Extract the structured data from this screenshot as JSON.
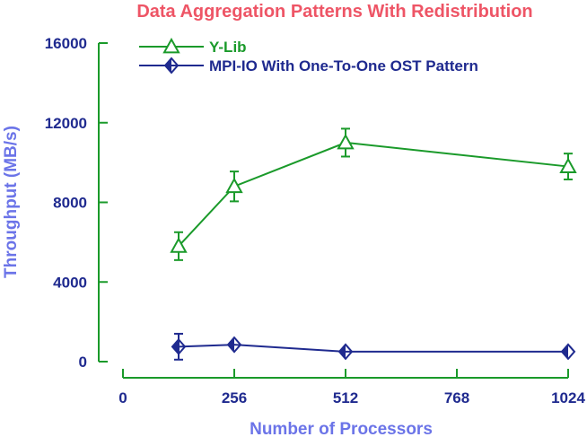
{
  "chart_data": {
    "type": "line",
    "title": "Data Aggregation Patterns With Redistribution",
    "xlabel": "Number of Processors",
    "ylabel": "Throughput (MB/s)",
    "xlim": [
      0,
      1024
    ],
    "ylim": [
      0,
      16000
    ],
    "xticks": [
      0,
      256,
      512,
      768,
      1024
    ],
    "xtick_labels": [
      "0",
      "256",
      "512",
      "768",
      "1024"
    ],
    "yticks": [
      0,
      4000,
      8000,
      12000,
      16000
    ],
    "ytick_labels": [
      "0",
      "4000",
      "8000",
      "12000",
      "16000"
    ],
    "grid": false,
    "legend_position": "top-left",
    "series": [
      {
        "name": "Y-Lib",
        "color": "#1a9a2a",
        "marker": "triangle",
        "x": [
          128,
          256,
          512,
          1024
        ],
        "y": [
          5800,
          8800,
          11000,
          9800
        ],
        "error": [
          700,
          750,
          700,
          650
        ]
      },
      {
        "name": "MPI-IO With One-To-One OST Pattern",
        "color": "#1f2a8f",
        "marker": "diamond",
        "x": [
          128,
          256,
          512,
          1024
        ],
        "y": [
          750,
          850,
          500,
          500
        ],
        "error": [
          650,
          0,
          0,
          0
        ]
      }
    ]
  }
}
